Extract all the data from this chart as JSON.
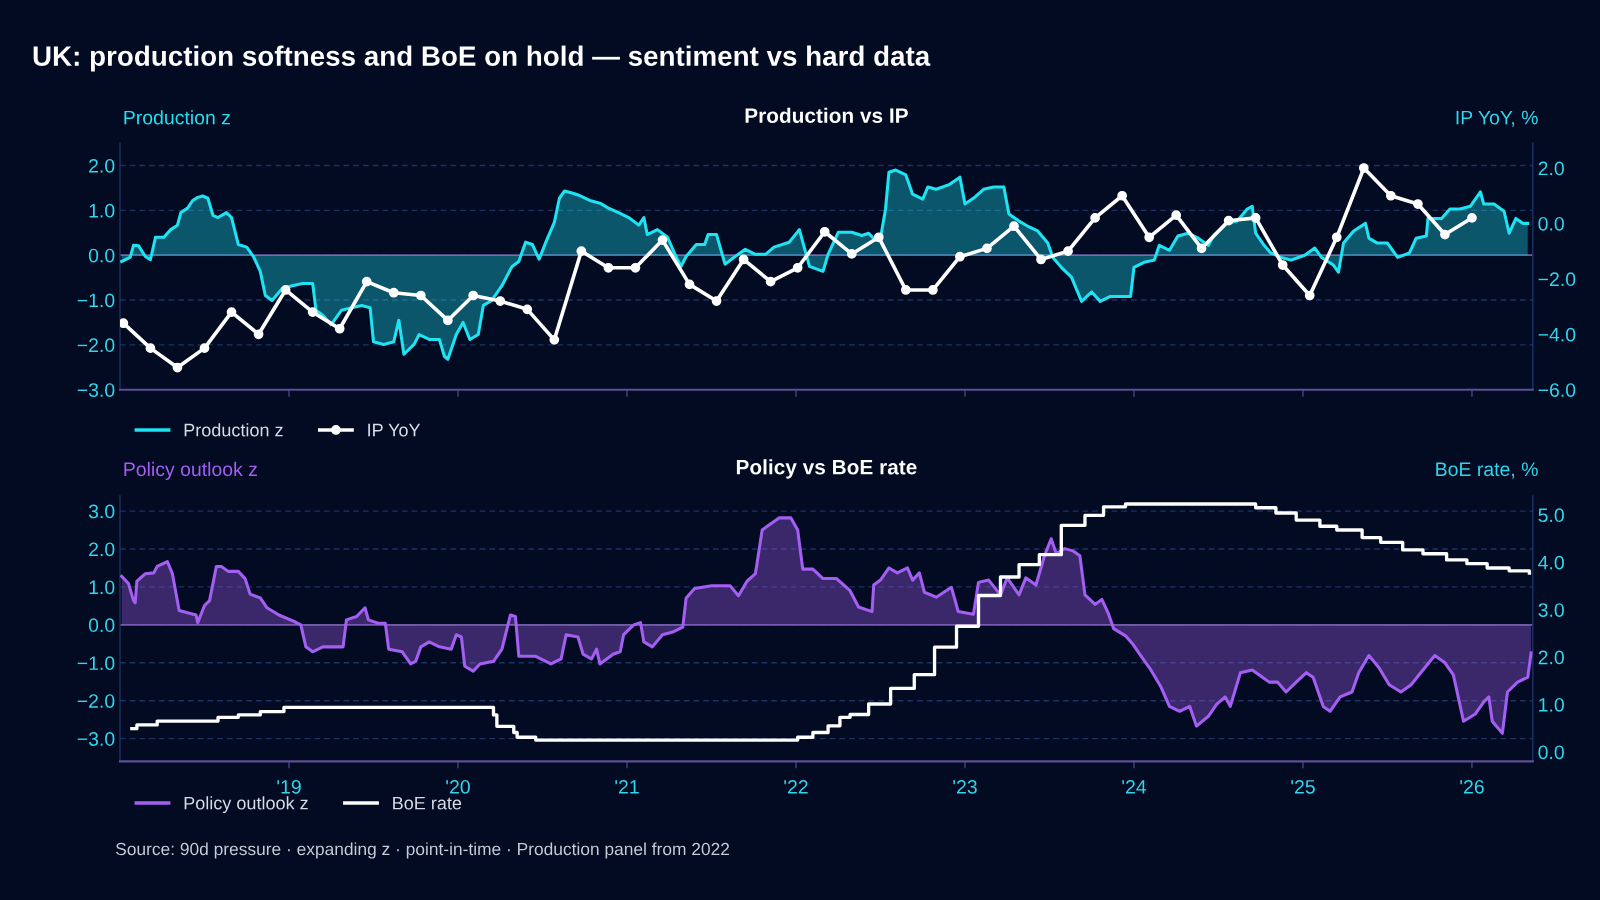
{
  "chart_data": [
    {
      "type": "area",
      "title": "Production vs IP",
      "ylabel": "Production z",
      "y2label": "IP YoY, %",
      "annotations": [
        "UK: production softness and BoE on hold — sentiment vs hard data"
      ],
      "xlim": [
        2018.0,
        2026.36
      ],
      "xticks": [
        {
          "value": 2019,
          "label": null
        },
        {
          "value": 2020,
          "label": null
        },
        {
          "value": 2021,
          "label": null
        },
        {
          "value": 2022,
          "label": null
        },
        {
          "value": 2023,
          "label": null
        },
        {
          "value": 2024,
          "label": null
        },
        {
          "value": 2025,
          "label": null
        },
        {
          "value": 2026,
          "label": null
        }
      ],
      "ylim": [
        -3.0,
        2.5
      ],
      "yticks": [
        {
          "value": -3,
          "label": "−3.0"
        },
        {
          "value": -2,
          "label": "−2.0"
        },
        {
          "value": -1,
          "label": "−1.0"
        },
        {
          "value": 0,
          "label": "0.0"
        },
        {
          "value": 1,
          "label": "1.0"
        },
        {
          "value": 2,
          "label": "2.0"
        }
      ],
      "y2lim": [
        -6.0,
        2.9
      ],
      "y2ticks": [
        {
          "value": -6,
          "label": "−6.0"
        },
        {
          "value": -4,
          "label": "−4.0"
        },
        {
          "value": -2,
          "label": "−2.0"
        },
        {
          "value": 0,
          "label": "0.0"
        },
        {
          "value": 2,
          "label": "2.0"
        }
      ],
      "tick_labels": "y",
      "grid": "y",
      "legend": "bottom left",
      "ref_lines": [
        {
          "axis": "y",
          "value": 0,
          "color": "#6a5c9e"
        }
      ],
      "series": [
        {
          "name": "Production z",
          "color": "#1ee3f2",
          "x": [
            2018.01,
            2018.06,
            2018.08,
            2018.11,
            2018.15,
            2018.18,
            2018.21,
            2018.26,
            2018.3,
            2018.34,
            2018.36,
            2018.4,
            2018.43,
            2018.46,
            2018.49,
            2018.52,
            2018.55,
            2018.58,
            2018.63,
            2018.66,
            2018.7,
            2018.75,
            2018.79,
            2018.83,
            2018.86,
            2018.9,
            2018.96,
            2019.02,
            2019.08,
            2019.14,
            2019.16,
            2019.2,
            2019.25,
            2019.31,
            2019.37,
            2019.43,
            2019.48,
            2019.5,
            2019.56,
            2019.62,
            2019.65,
            2019.68,
            2019.74,
            2019.77,
            2019.83,
            2019.89,
            2019.92,
            2019.94,
            2019.99,
            2020.03,
            2020.07,
            2020.12,
            2020.15,
            2020.2,
            2020.26,
            2020.32,
            2020.36,
            2020.4,
            2020.44,
            2020.48,
            2020.52,
            2020.57,
            2020.6,
            2020.63,
            2020.68,
            2020.72,
            2020.78,
            2020.84,
            2020.89,
            2020.95,
            2021.01,
            2021.07,
            2021.1,
            2021.12,
            2021.18,
            2021.24,
            2021.29,
            2021.32,
            2021.35,
            2021.41,
            2021.46,
            2021.48,
            2021.53,
            2021.58,
            2021.64,
            2021.7,
            2021.76,
            2021.82,
            2021.87,
            2021.96,
            2022.02,
            2022.08,
            2022.16,
            2022.19,
            2022.25,
            2022.33,
            2022.39,
            2022.43,
            2022.47,
            2022.5,
            2022.53,
            2022.55,
            2022.59,
            2022.65,
            2022.69,
            2022.75,
            2022.78,
            2022.83,
            2022.91,
            2022.97,
            2023.0,
            2023.06,
            2023.11,
            2023.17,
            2023.23,
            2023.26,
            2023.32,
            2023.37,
            2023.43,
            2023.49,
            2023.52,
            2023.57,
            2023.63,
            2023.69,
            2023.75,
            2023.8,
            2023.86,
            2023.92,
            2023.98,
            2024.0,
            2024.06,
            2024.12,
            2024.15,
            2024.21,
            2024.26,
            2024.32,
            2024.38,
            2024.44,
            2024.47,
            2024.55,
            2024.61,
            2024.67,
            2024.7,
            2024.72,
            2024.77,
            2024.81,
            2024.87,
            2024.93,
            2025.01,
            2025.07,
            2025.11,
            2025.18,
            2025.21,
            2025.24,
            2025.3,
            2025.37,
            2025.39,
            2025.44,
            2025.5,
            2025.56,
            2025.63,
            2025.67,
            2025.73,
            2025.74,
            2025.82,
            2025.87,
            2025.93,
            2025.99,
            2026.05,
            2026.07,
            2026.13,
            2026.19,
            2026.22,
            2026.26,
            2026.3,
            2026.33
          ],
          "values": [
            -0.14,
            -0.05,
            0.22,
            0.21,
            -0.03,
            -0.1,
            0.4,
            0.4,
            0.57,
            0.67,
            0.95,
            1.05,
            1.22,
            1.29,
            1.32,
            1.27,
            0.89,
            0.84,
            0.95,
            0.84,
            0.24,
            0.18,
            -0.03,
            -0.36,
            -0.9,
            -1.01,
            -0.74,
            -0.68,
            -0.63,
            -0.63,
            -1.23,
            -1.34,
            -1.55,
            -1.23,
            -1.17,
            -1.12,
            -1.17,
            -1.93,
            -1.99,
            -1.93,
            -1.45,
            -2.21,
            -1.99,
            -1.77,
            -1.88,
            -1.88,
            -2.26,
            -2.32,
            -1.77,
            -1.5,
            -1.88,
            -1.77,
            -1.12,
            -1.01,
            -0.68,
            -0.25,
            -0.14,
            0.29,
            0.24,
            -0.09,
            0.29,
            0.73,
            1.27,
            1.43,
            1.38,
            1.33,
            1.22,
            1.16,
            1.05,
            0.95,
            0.84,
            0.67,
            0.84,
            0.46,
            0.57,
            0.4,
            -0.03,
            -0.25,
            -0.03,
            0.24,
            0.24,
            0.46,
            0.46,
            -0.2,
            -0.03,
            0.13,
            0.02,
            0.02,
            0.18,
            0.29,
            0.57,
            -0.25,
            -0.36,
            0.02,
            0.51,
            0.51,
            0.44,
            0.49,
            0.33,
            0.38,
            1.03,
            1.85,
            1.9,
            1.79,
            1.36,
            1.25,
            1.52,
            1.47,
            1.58,
            1.74,
            1.14,
            1.3,
            1.47,
            1.52,
            1.52,
            0.92,
            0.76,
            0.65,
            0.54,
            0.27,
            -0.05,
            -0.27,
            -0.49,
            -1.03,
            -0.82,
            -1.03,
            -0.92,
            -0.92,
            -0.92,
            -0.27,
            -0.16,
            -0.11,
            0.22,
            0.11,
            0.43,
            0.49,
            0.38,
            0.22,
            0.43,
            0.71,
            0.76,
            1.03,
            1.09,
            0.49,
            0.22,
            0.05,
            -0.05,
            -0.11,
            0.0,
            0.16,
            -0.05,
            -0.22,
            -0.38,
            0.27,
            0.54,
            0.71,
            0.38,
            0.27,
            0.27,
            -0.05,
            0.05,
            0.38,
            0.43,
            0.82,
            0.82,
            1.03,
            1.03,
            1.09,
            1.41,
            1.14,
            1.14,
            0.98,
            0.49,
            0.82,
            0.71,
            0.71
          ]
        },
        {
          "name": "IP YoY",
          "type": "line",
          "axis": "y2",
          "color": "#ffffff",
          "marker": "circle",
          "line_style": "solid",
          "x": [
            2018.02,
            2018.18,
            2018.34,
            2018.5,
            2018.66,
            2018.82,
            2018.98,
            2019.14,
            2019.3,
            2019.46,
            2019.62,
            2019.78,
            2019.94,
            2020.09,
            2020.25,
            2020.41,
            2020.57,
            2020.73,
            2020.89,
            2021.05,
            2021.21,
            2021.37,
            2021.53,
            2021.69,
            2021.85,
            2022.01,
            2022.17,
            2022.33,
            2022.49,
            2022.65,
            2022.81,
            2022.97,
            2023.13,
            2023.29,
            2023.45,
            2023.61,
            2023.77,
            2023.93,
            2024.09,
            2024.25,
            2024.4,
            2024.56,
            2024.72,
            2024.88,
            2025.04,
            2025.2,
            2025.36,
            2025.52,
            2025.68,
            2025.84,
            2026.0
          ],
          "values": [
            -3.6,
            -4.5,
            -5.2,
            -4.5,
            -3.2,
            -4.0,
            -2.4,
            -3.2,
            -3.8,
            -2.1,
            -2.5,
            -2.6,
            -3.5,
            -2.6,
            -2.8,
            -3.1,
            -4.2,
            -1.0,
            -1.6,
            -1.6,
            -0.6,
            -2.2,
            -2.8,
            -1.3,
            -2.1,
            -1.6,
            -0.3,
            -1.1,
            -0.5,
            -2.4,
            -2.4,
            -1.2,
            -0.9,
            -0.1,
            -1.3,
            -1.0,
            0.2,
            1.0,
            -0.5,
            0.3,
            -0.9,
            0.1,
            0.2,
            -1.5,
            -2.6,
            -0.5,
            2.0,
            1.0,
            0.7,
            -0.4,
            0.2
          ]
        }
      ]
    },
    {
      "type": "area",
      "title": "Policy vs BoE rate",
      "ylabel": "Policy outlook z",
      "y2label": "BoE rate, %",
      "xlim": [
        2018.0,
        2026.36
      ],
      "xticks": [
        {
          "value": 2019,
          "label": "'19"
        },
        {
          "value": 2020,
          "label": "'20"
        },
        {
          "value": 2021,
          "label": "'21"
        },
        {
          "value": 2022,
          "label": "'22"
        },
        {
          "value": 2023,
          "label": "'23"
        },
        {
          "value": 2024,
          "label": "'24"
        },
        {
          "value": 2025,
          "label": "'25"
        },
        {
          "value": 2026,
          "label": "'26"
        }
      ],
      "ylim": [
        -3.6,
        3.4
      ],
      "yticks": [
        {
          "value": -3,
          "label": "−3.0"
        },
        {
          "value": -2,
          "label": "−2.0"
        },
        {
          "value": -1,
          "label": "−1.0"
        },
        {
          "value": 0,
          "label": "0.0"
        },
        {
          "value": 1,
          "label": "1.0"
        },
        {
          "value": 2,
          "label": "2.0"
        },
        {
          "value": 3,
          "label": "3.0"
        }
      ],
      "y2lim": [
        -0.2,
        5.4
      ],
      "y2ticks": [
        {
          "value": 0,
          "label": "0.0"
        },
        {
          "value": 1,
          "label": "1.0"
        },
        {
          "value": 2,
          "label": "2.0"
        },
        {
          "value": 3,
          "label": "3.0"
        },
        {
          "value": 4,
          "label": "4.0"
        },
        {
          "value": 5,
          "label": "5.0"
        }
      ],
      "grid": "y",
      "legend": "bottom left",
      "ref_lines": [
        {
          "axis": "y",
          "value": 0,
          "color": "#6a5c9e"
        }
      ],
      "annotations": [
        "Source: 90d pressure · expanding z · point-in-time · Production panel from 2022"
      ],
      "series": [
        {
          "name": "Policy outlook z",
          "color": "#a45ef2",
          "x": [
            2018.01,
            2018.05,
            2018.08,
            2018.09,
            2018.1,
            2018.15,
            2018.2,
            2018.22,
            2018.28,
            2018.31,
            2018.35,
            2018.4,
            2018.45,
            2018.46,
            2018.5,
            2018.53,
            2018.57,
            2018.6,
            2018.64,
            2018.7,
            2018.74,
            2018.77,
            2018.83,
            2018.87,
            2018.94,
            2019.03,
            2019.07,
            2019.1,
            2019.14,
            2019.2,
            2019.32,
            2019.34,
            2019.4,
            2019.45,
            2019.47,
            2019.53,
            2019.57,
            2019.59,
            2019.67,
            2019.72,
            2019.75,
            2019.78,
            2019.83,
            2019.89,
            2019.96,
            2019.99,
            2020.02,
            2020.04,
            2020.09,
            2020.13,
            2020.21,
            2020.26,
            2020.31,
            2020.34,
            2020.36,
            2020.46,
            2020.55,
            2020.61,
            2020.64,
            2020.71,
            2020.74,
            2020.79,
            2020.82,
            2020.84,
            2020.92,
            2020.96,
            2020.98,
            2021.04,
            2021.08,
            2021.1,
            2021.15,
            2021.21,
            2021.27,
            2021.33,
            2021.35,
            2021.4,
            2021.5,
            2021.61,
            2021.66,
            2021.71,
            2021.76,
            2021.8,
            2021.84,
            2021.9,
            2021.97,
            2022.01,
            2022.04,
            2022.1,
            2022.16,
            2022.24,
            2022.32,
            2022.37,
            2022.45,
            2022.46,
            2022.5,
            2022.55,
            2022.6,
            2022.66,
            2022.69,
            2022.73,
            2022.76,
            2022.83,
            2022.92,
            2022.96,
            2023.05,
            2023.08,
            2023.14,
            2023.21,
            2023.25,
            2023.32,
            2023.36,
            2023.42,
            2023.47,
            2023.51,
            2023.54,
            2023.59,
            2023.64,
            2023.68,
            2023.71,
            2023.77,
            2023.81,
            2023.85,
            2023.88,
            2023.95,
            2023.99,
            2024.04,
            2024.1,
            2024.16,
            2024.21,
            2024.27,
            2024.33,
            2024.37,
            2024.44,
            2024.49,
            2024.54,
            2024.57,
            2024.63,
            2024.7,
            2024.76,
            2024.8,
            2024.85,
            2024.9,
            2024.96,
            2025.02,
            2025.06,
            2025.12,
            2025.16,
            2025.22,
            2025.29,
            2025.33,
            2025.39,
            2025.45,
            2025.51,
            2025.58,
            2025.64,
            2025.71,
            2025.78,
            2025.84,
            2025.89,
            2025.95,
            2026.02,
            2026.07,
            2026.1,
            2026.12,
            2026.18,
            2026.21,
            2026.27,
            2026.33,
            2026.35
          ],
          "values": [
            1.28,
            1.09,
            0.64,
            0.58,
            1.15,
            1.35,
            1.37,
            1.54,
            1.67,
            1.35,
            0.38,
            0.32,
            0.26,
            0.06,
            0.51,
            0.64,
            1.54,
            1.54,
            1.41,
            1.41,
            1.22,
            0.81,
            0.71,
            0.45,
            0.26,
            0.09,
            0.0,
            -0.58,
            -0.71,
            -0.58,
            -0.58,
            0.13,
            0.22,
            0.45,
            0.13,
            0.04,
            0.04,
            -0.64,
            -0.71,
            -1.03,
            -0.96,
            -0.58,
            -0.45,
            -0.58,
            -0.64,
            -0.26,
            -0.32,
            -1.09,
            -1.22,
            -1.03,
            -0.96,
            -0.64,
            0.26,
            0.22,
            -0.83,
            -0.83,
            -1.03,
            -0.9,
            -0.26,
            -0.32,
            -0.77,
            -0.9,
            -0.64,
            -1.03,
            -0.77,
            -0.71,
            -0.26,
            0.0,
            0.06,
            -0.45,
            -0.58,
            -0.26,
            -0.19,
            -0.06,
            0.71,
            0.96,
            1.03,
            1.03,
            0.77,
            1.15,
            1.35,
            2.5,
            2.63,
            2.82,
            2.82,
            2.5,
            1.47,
            1.47,
            1.22,
            1.22,
            0.9,
            0.47,
            0.35,
            1.05,
            1.18,
            1.5,
            1.37,
            1.5,
            1.18,
            1.37,
            0.86,
            0.73,
            0.99,
            0.35,
            0.28,
            1.12,
            1.18,
            0.79,
            1.24,
            0.79,
            1.24,
            1.05,
            1.82,
            2.27,
            1.88,
            2.01,
            1.95,
            1.82,
            0.79,
            0.54,
            0.67,
            0.28,
            -0.1,
            -0.29,
            -0.49,
            -0.81,
            -1.19,
            -1.64,
            -2.15,
            -2.28,
            -2.15,
            -2.67,
            -2.41,
            -2.09,
            -1.9,
            -2.15,
            -1.26,
            -1.19,
            -1.38,
            -1.51,
            -1.51,
            -1.77,
            -1.51,
            -1.26,
            -1.38,
            -2.15,
            -2.28,
            -1.9,
            -1.77,
            -1.26,
            -0.81,
            -1.13,
            -1.58,
            -1.77,
            -1.58,
            -1.19,
            -0.81,
            -1.0,
            -1.32,
            -2.54,
            -2.35,
            -2.03,
            -1.9,
            -2.54,
            -2.86,
            -1.77,
            -1.51,
            -1.38,
            -0.74
          ]
        },
        {
          "name": "BoE rate",
          "type": "step",
          "axis": "y2",
          "color": "#ffffff",
          "x": [
            2018.07,
            2018.1,
            2018.22,
            2018.58,
            2018.7,
            2018.83,
            2018.97,
            2020.18,
            2020.21,
            2020.23,
            2020.33,
            2020.35,
            2020.46,
            2021.96,
            2022.01,
            2022.1,
            2022.19,
            2022.26,
            2022.32,
            2022.43,
            2022.56,
            2022.7,
            2022.82,
            2022.95,
            2023.08,
            2023.21,
            2023.32,
            2023.44,
            2023.57,
            2023.71,
            2023.82,
            2023.95,
            2024.57,
            2024.72,
            2024.84,
            2024.96,
            2025.1,
            2025.2,
            2025.35,
            2025.46,
            2025.59,
            2025.71,
            2025.85,
            2025.97,
            2026.09,
            2026.22,
            2026.34
          ],
          "values": [
            0.49,
            0.57,
            0.65,
            0.73,
            0.78,
            0.85,
            0.94,
            0.94,
            0.78,
            0.54,
            0.41,
            0.31,
            0.25,
            0.25,
            0.31,
            0.41,
            0.55,
            0.73,
            0.79,
            1.01,
            1.34,
            1.63,
            2.21,
            2.65,
            3.3,
            3.69,
            3.95,
            4.16,
            4.78,
            4.99,
            5.17,
            5.23,
            5.23,
            5.15,
            5.04,
            4.89,
            4.76,
            4.68,
            4.52,
            4.42,
            4.26,
            4.18,
            4.05,
            3.97,
            3.88,
            3.82,
            3.77
          ]
        }
      ]
    }
  ]
}
